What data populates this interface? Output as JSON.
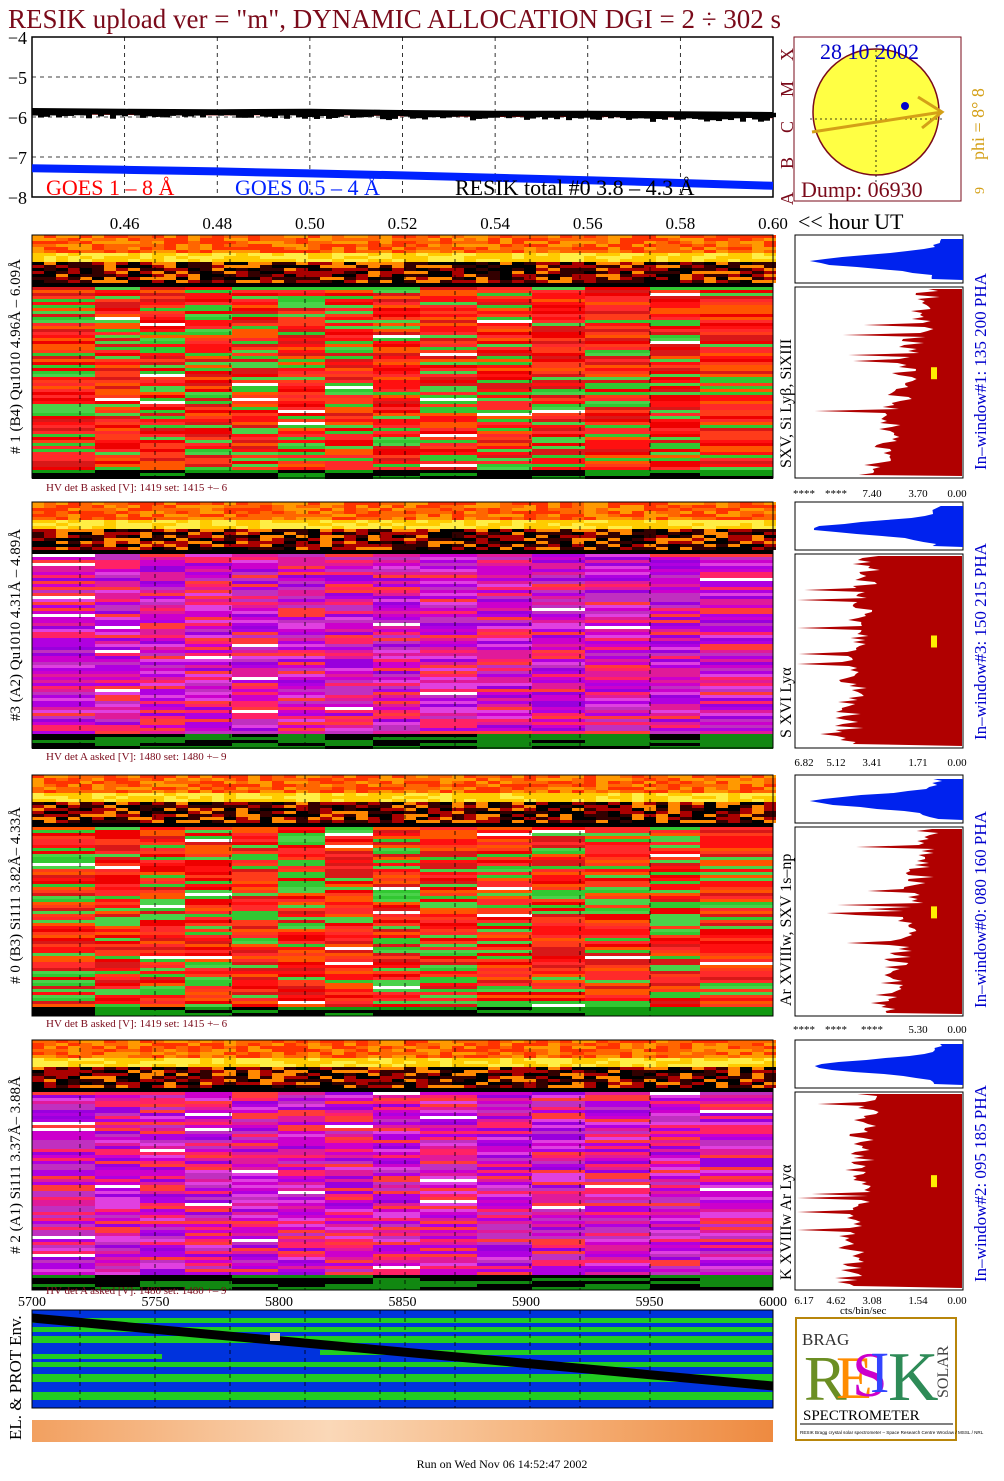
{
  "header": {
    "title": "RESIK upload ver = \"m\", DYNAMIC ALLOCATION  DGI =   2 ÷ 302 s",
    "footer": "Run on Wed Nov 06 14:52:47 2002"
  },
  "colors": {
    "title": "#7a0a1a",
    "goes_long": "#ff0000",
    "goes_short": "#0022ff",
    "resik_total": "#000000",
    "histogram": "#b00000",
    "pha_hist": "#0022ee",
    "sun": "#ffff44",
    "sun_arrow": "#d4a017",
    "dark_red_text": "#8b0000",
    "blue_text": "#0000cc"
  },
  "top_panel": {
    "legend": [
      "GOES 1 – 8 Å",
      "GOES 0.5 – 4 Å",
      "RESIK total #0  3.8 – 4.3 Å"
    ],
    "time_axis_label": "<< hour UT",
    "class_letters": [
      "A",
      "B",
      "C",
      "M",
      "X"
    ]
  },
  "sun_panel": {
    "date": "28 10 2002",
    "dump": "Dump: 06930",
    "phi": "phi =  8° 8",
    "phi_small": "9"
  },
  "spectrograms": [
    {
      "side_label": "# 1 (B4) Qu1010 4.96Å – 6.09Å",
      "line_label": "SXV, Si Lyβ, SiXIII",
      "window_label": "In–window#1:  135 200 PHA",
      "hv": "HV det B asked [V]:  1419 set:  1415 +–   6",
      "hist_ticks": [
        "****",
        "****",
        "7.40",
        "3.70",
        "0.00"
      ],
      "palette": "red"
    },
    {
      "side_label": "#3 (A2) Qu1010  4.31Å – 4.89Å",
      "line_label": "S XVI Lyα",
      "window_label": "In–window#3:  150 215 PHA",
      "hv": "HV det A asked [V]:  1480 set:  1480 +–   9",
      "hist_ticks": [
        "6.82",
        "5.12",
        "3.41",
        "1.71",
        "0.00"
      ],
      "palette": "purple"
    },
    {
      "side_label": "# 0 (B3) Si111  3.82Å– 4.33Å",
      "line_label": "Ar XVIIIw,  SXV 1s–np",
      "window_label": "In–window#0:  080 160 PHA",
      "hv": "HV det B asked [V]:  1419 set:  1415 +–   6",
      "hist_ticks": [
        "****",
        "****",
        "****",
        "5.30",
        "0.00"
      ],
      "palette": "red"
    },
    {
      "side_label": "# 2 (A1) Si111  3.37Å– 3.88Å",
      "line_label": "K XVIIIw  Ar Lyα",
      "window_label": "In–window#2:  095 185 PHA",
      "hv": "HV det A asked [V]:  1480 set:  1480 +–   9",
      "hist_ticks": [
        "6.17",
        "4.62",
        "3.08",
        "1.54",
        "0.00"
      ],
      "hist_unit": "cts/bin/sec",
      "palette": "purple"
    }
  ],
  "bottom_panel": {
    "side_label": "EL. & PROT Env.",
    "x_ticks": [
      "5700",
      "5750",
      "5800",
      "5850",
      "5900",
      "5950",
      "6000"
    ]
  },
  "logo": {
    "letters": [
      "R",
      "E",
      "S",
      "I",
      "K"
    ],
    "small": [
      "BRAG",
      "SOLAR"
    ],
    "caption": "SPECTROMETER",
    "fine_print": "RESIK Bragg crystal solar spectrometer – Space Research Centre Wroclaw / MSSL / NRL"
  },
  "chart_data": [
    {
      "type": "line",
      "title": "RESIK upload ver = \"m\", DYNAMIC ALLOCATION  DGI =   2 ÷ 302 s",
      "xlabel": "<< hour UT",
      "ylabel": "",
      "xlim": [
        0.44,
        0.6
      ],
      "ylim": [
        -8,
        -4
      ],
      "x_ticks": [
        0.46,
        0.48,
        0.5,
        0.52,
        0.54,
        0.56,
        0.58,
        0.6
      ],
      "y_ticks": [
        -8,
        -7,
        -6,
        -5,
        -4
      ],
      "grid": true,
      "series": [
        {
          "name": "GOES 1 – 8 Å",
          "color": "#ff0000",
          "x": [
            0.44,
            0.46,
            0.48,
            0.5,
            0.52,
            0.54,
            0.56,
            0.58,
            0.6
          ],
          "y": [
            -5.88,
            -5.9,
            -5.91,
            -5.9,
            -5.93,
            -5.95,
            -5.95,
            -5.96,
            -5.98
          ]
        },
        {
          "name": "GOES 0.5 – 4 Å",
          "color": "#0022ff",
          "x": [
            0.44,
            0.46,
            0.48,
            0.5,
            0.52,
            0.54,
            0.56,
            0.58,
            0.6
          ],
          "y": [
            -7.28,
            -7.32,
            -7.36,
            -7.41,
            -7.46,
            -7.52,
            -7.58,
            -7.65,
            -7.72
          ]
        },
        {
          "name": "RESIK total #0  3.8 – 4.3 Å",
          "color": "#000000",
          "x": [
            0.44,
            0.46,
            0.48,
            0.5,
            0.52,
            0.54,
            0.56,
            0.58,
            0.6
          ],
          "y": [
            -5.85,
            -5.87,
            -5.88,
            -5.87,
            -5.9,
            -5.92,
            -5.92,
            -5.93,
            -5.95
          ]
        }
      ]
    },
    {
      "type": "line",
      "title": "",
      "xlabel": "",
      "ylabel": "EL. & PROT Env.",
      "xlim": [
        5700,
        6000
      ],
      "x_ticks": [
        5700,
        5750,
        5800,
        5850,
        5900,
        5950,
        6000
      ],
      "grid": true,
      "series": [
        {
          "name": "",
          "color": "#000000",
          "x": [
            5700,
            6000
          ],
          "y": [
            1.0,
            0.0
          ]
        }
      ]
    }
  ]
}
